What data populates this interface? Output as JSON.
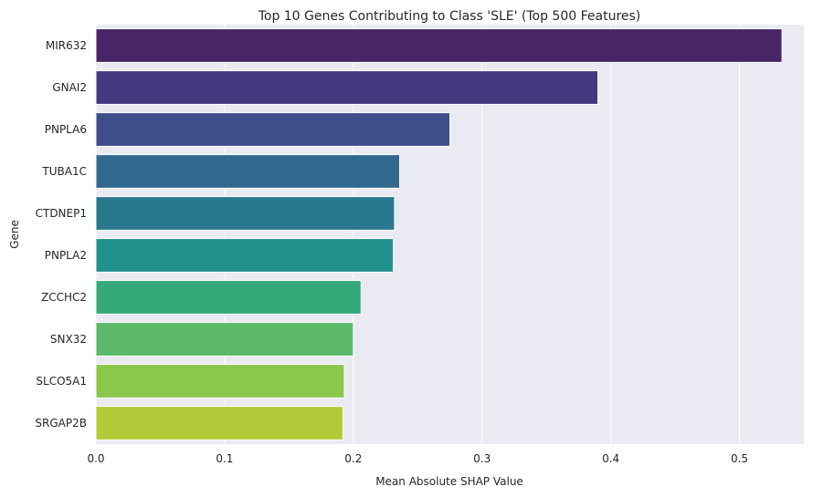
{
  "chart_data": {
    "type": "bar",
    "orientation": "horizontal",
    "title": "Top 10 Genes Contributing to Class 'SLE' (Top 500 Features)",
    "xlabel": "Mean Absolute SHAP Value",
    "ylabel": "Gene",
    "xlim": [
      0,
      0.55
    ],
    "xticks": [
      "0.0",
      "0.1",
      "0.2",
      "0.3",
      "0.4",
      "0.5"
    ],
    "grid": true,
    "categories": [
      "MIR632",
      "GNAI2",
      "PNPLA6",
      "TUBA1C",
      "CTDNEP1",
      "PNPLA2",
      "ZCCHC2",
      "SNX32",
      "SLCO5A1",
      "SRGAP2B"
    ],
    "values": [
      0.533,
      0.39,
      0.275,
      0.236,
      0.232,
      0.231,
      0.206,
      0.2,
      0.193,
      0.192
    ],
    "colors": [
      "#482567",
      "#46397f",
      "#3f4d88",
      "#31688e",
      "#2a788e",
      "#22908d",
      "#35a979",
      "#5cb96a",
      "#8ac74b",
      "#b1cb38"
    ],
    "background_color": "#eaeaf2"
  }
}
